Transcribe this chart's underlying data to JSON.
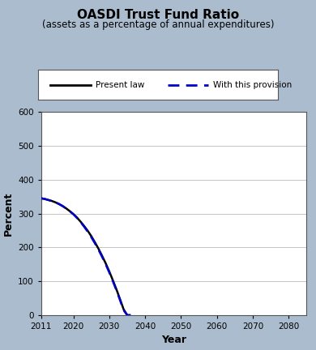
{
  "title": "OASDI Trust Fund Ratio",
  "subtitle": "(assets as a percentage of annual expenditures)",
  "xlabel": "Year",
  "ylabel": "Percent",
  "xlim": [
    2011,
    2085
  ],
  "ylim": [
    0,
    600
  ],
  "xticks": [
    2011,
    2020,
    2030,
    2040,
    2050,
    2060,
    2070,
    2080
  ],
  "yticks": [
    0,
    100,
    200,
    300,
    400,
    500,
    600
  ],
  "background_color": "#aabcce",
  "plot_bg_color": "#ffffff",
  "present_law_color": "#000000",
  "provision_color": "#0000cc",
  "present_law_label": "Present law",
  "provision_label": "With this provision",
  "present_law": {
    "years": [
      2011,
      2012,
      2013,
      2014,
      2015,
      2016,
      2017,
      2018,
      2019,
      2020,
      2021,
      2022,
      2023,
      2024,
      2025,
      2026,
      2027,
      2028,
      2029,
      2030,
      2031,
      2032,
      2033,
      2034,
      2035
    ],
    "values": [
      345,
      343,
      340,
      337,
      333,
      328,
      322,
      315,
      307,
      298,
      288,
      276,
      263,
      249,
      233,
      215,
      196,
      175,
      153,
      129,
      103,
      76,
      47,
      17,
      0
    ]
  },
  "provision": {
    "years": [
      2011,
      2012,
      2013,
      2014,
      2015,
      2016,
      2017,
      2018,
      2019,
      2020,
      2021,
      2022,
      2023,
      2024,
      2025,
      2026,
      2027,
      2028,
      2029,
      2030,
      2031,
      2032,
      2033,
      2034,
      2035,
      2036
    ],
    "values": [
      345,
      343,
      340,
      337,
      333,
      328,
      322,
      315,
      307,
      298,
      287,
      275,
      261,
      246,
      230,
      212,
      193,
      172,
      150,
      126,
      100,
      73,
      44,
      14,
      0,
      0
    ]
  }
}
